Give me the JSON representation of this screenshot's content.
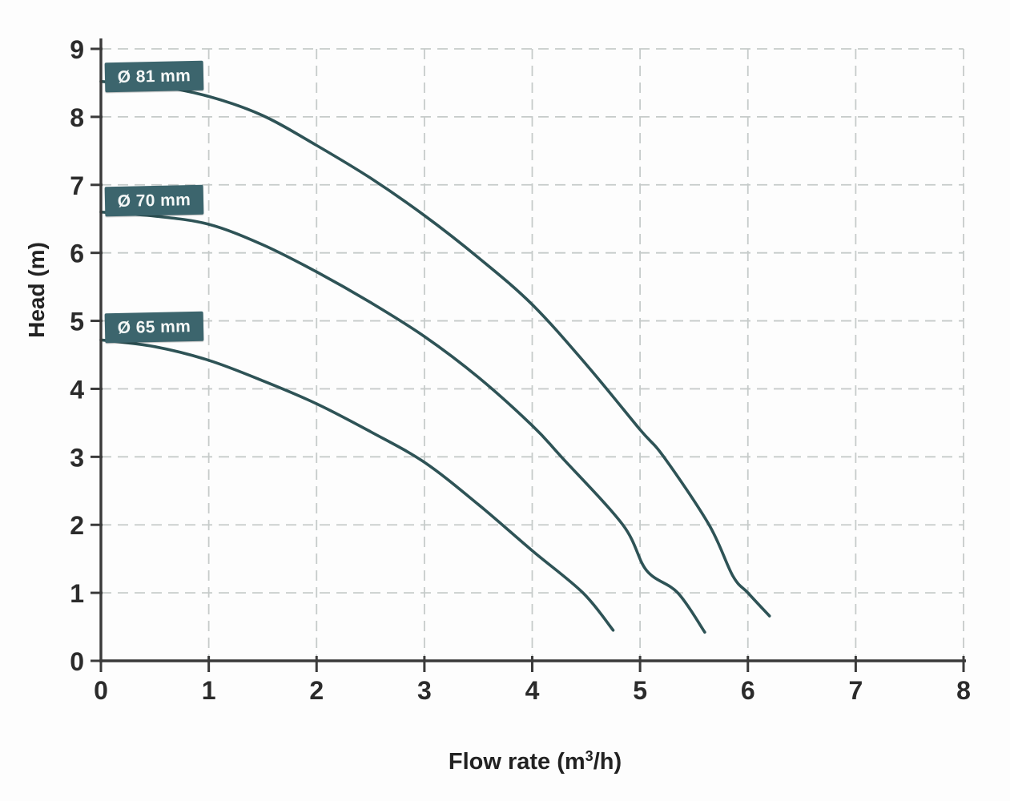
{
  "chart_data": {
    "type": "line",
    "title": "",
    "xlabel": "Flow rate (m³/h)",
    "xlabel_parts": {
      "pre": "Flow rate (m",
      "sup": "3",
      "post": "/h)"
    },
    "ylabel": "Head (m)",
    "xlim": [
      0,
      8
    ],
    "ylim": [
      0,
      9
    ],
    "x_ticks": [
      "0",
      "1",
      "2",
      "3",
      "4",
      "5",
      "6",
      "7",
      "8"
    ],
    "y_ticks": [
      "0",
      "1",
      "2",
      "3",
      "4",
      "5",
      "6",
      "7",
      "8",
      "9"
    ],
    "grid": "dashed, both directions, every 1 unit",
    "legend_position": "on-curve labels at left",
    "series": [
      {
        "name": "impeller-81mm",
        "label": "Ø 81 mm",
        "points": [
          [
            0,
            8.52
          ],
          [
            0.5,
            8.46
          ],
          [
            1,
            8.3
          ],
          [
            1.5,
            8.02
          ],
          [
            2,
            7.58
          ],
          [
            2.5,
            7.1
          ],
          [
            3,
            6.55
          ],
          [
            3.5,
            5.93
          ],
          [
            4,
            5.24
          ],
          [
            4.5,
            4.36
          ],
          [
            5,
            3.4
          ],
          [
            5.22,
            3.0
          ],
          [
            5.64,
            2.0
          ],
          [
            5.86,
            1.25
          ],
          [
            6,
            1.0
          ],
          [
            6.2,
            0.66
          ]
        ]
      },
      {
        "name": "impeller-70mm",
        "label": "Ø 70 mm",
        "points": [
          [
            0,
            6.6
          ],
          [
            0.5,
            6.54
          ],
          [
            1,
            6.42
          ],
          [
            1.5,
            6.12
          ],
          [
            2,
            5.72
          ],
          [
            2.5,
            5.27
          ],
          [
            3,
            4.77
          ],
          [
            3.5,
            4.17
          ],
          [
            4,
            3.46
          ],
          [
            4.27,
            3.0
          ],
          [
            4.84,
            2.0
          ],
          [
            5.06,
            1.33
          ],
          [
            5.35,
            1.0
          ],
          [
            5.6,
            0.42
          ]
        ]
      },
      {
        "name": "impeller-65mm",
        "label": "Ø 65 mm",
        "points": [
          [
            0,
            4.72
          ],
          [
            0.5,
            4.62
          ],
          [
            1,
            4.42
          ],
          [
            1.5,
            4.12
          ],
          [
            2,
            3.78
          ],
          [
            2.5,
            3.37
          ],
          [
            3,
            2.92
          ],
          [
            3.5,
            2.3
          ],
          [
            4,
            1.62
          ],
          [
            4.47,
            1.0
          ],
          [
            4.75,
            0.45
          ]
        ]
      }
    ],
    "colors": {
      "curve": "#2e5356",
      "label_bg": "#3c656d",
      "label_text": "#f4f7f6",
      "grid": "#c6cbca",
      "axis": "#3a3a3a",
      "tick_text": "#2b2b2b",
      "background": "#fdfdfd"
    }
  }
}
